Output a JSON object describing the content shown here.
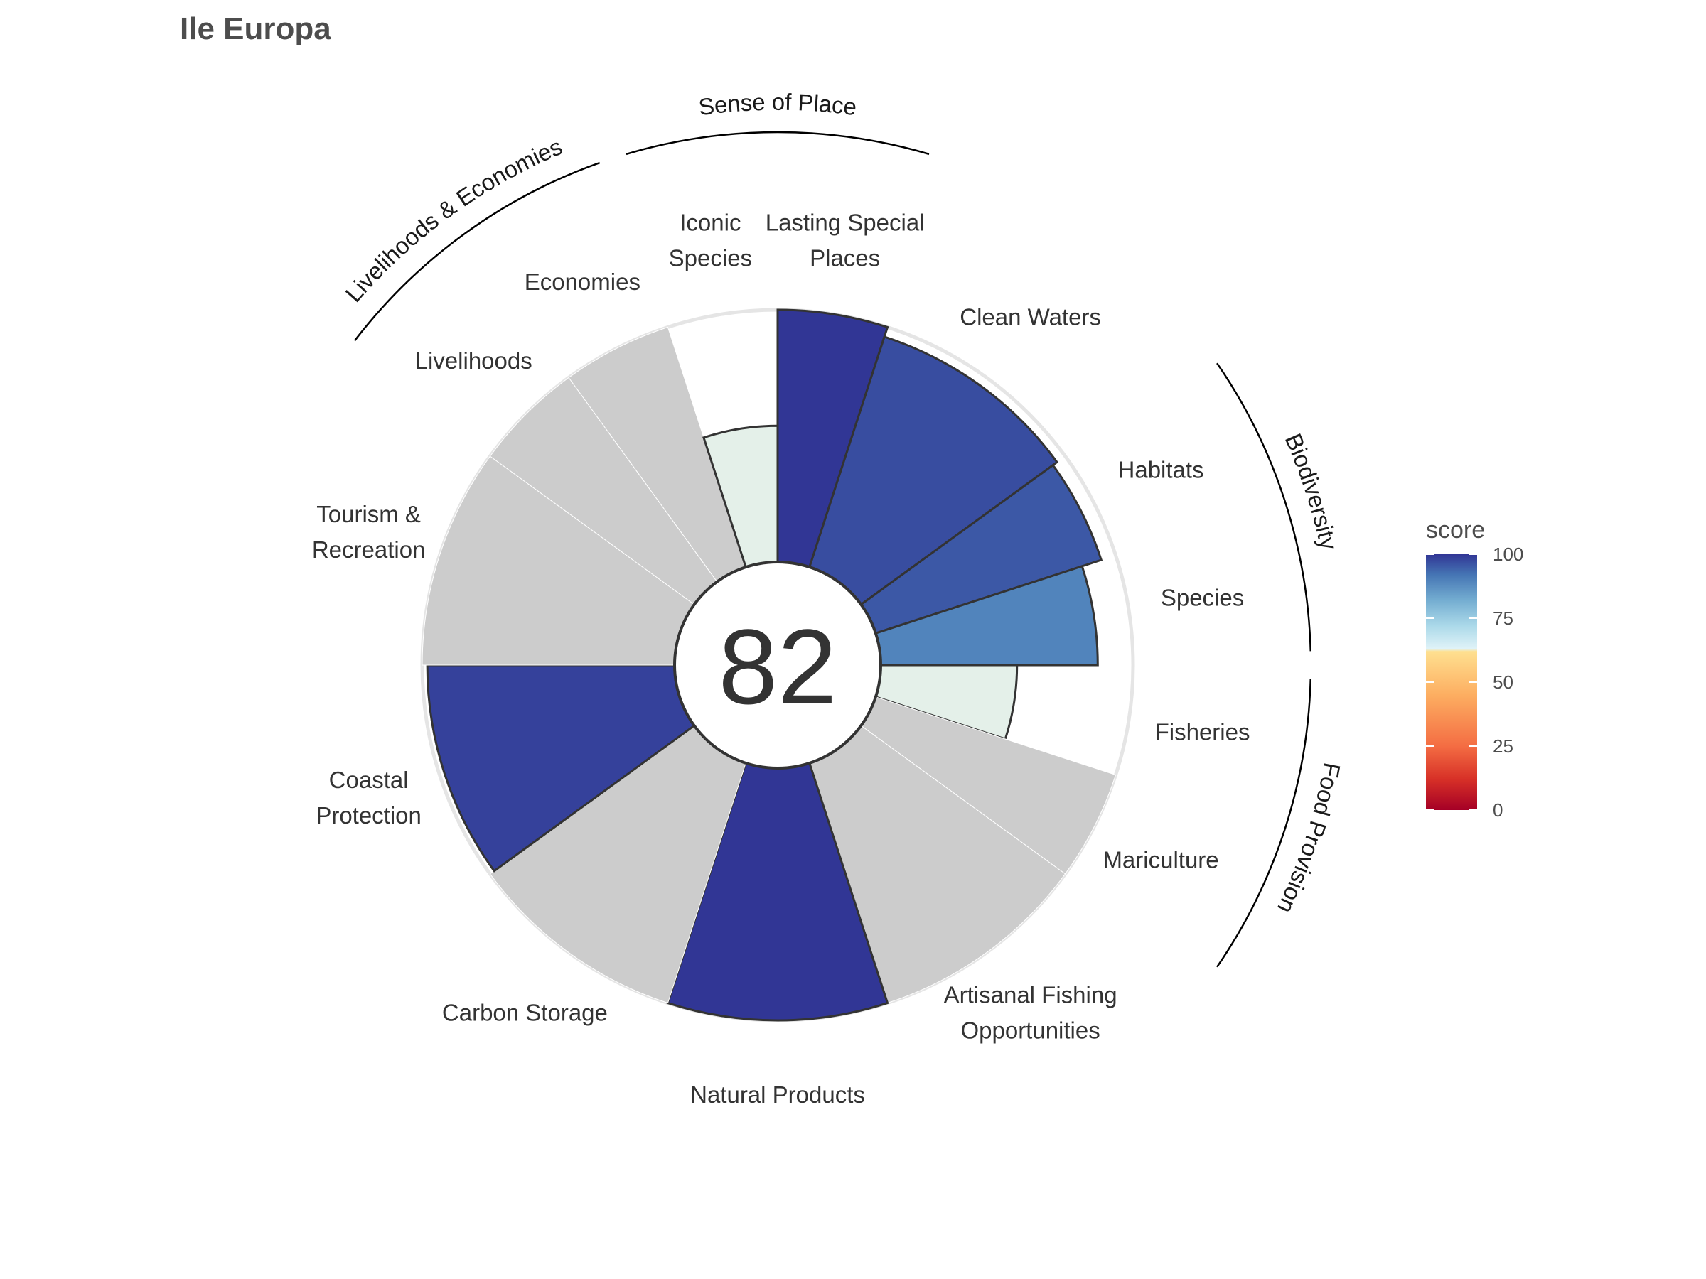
{
  "page_title": "Ile Europa",
  "center_score": "82",
  "chart_data": {
    "type": "bar",
    "coordinate_system": "polar",
    "title": "Ile Europa",
    "range": [
      0,
      100
    ],
    "goals": [
      {
        "label": "Fisheries",
        "value": 54,
        "weight": 1,
        "na": false
      },
      {
        "label": "Mariculture",
        "value": null,
        "weight": 1,
        "na": true
      },
      {
        "label": "Artisanal Fishing Opportunities",
        "label_lines": [
          "Artisanal Fishing",
          "Opportunities"
        ],
        "value": null,
        "weight": 2,
        "na": true
      },
      {
        "label": "Natural Products",
        "value": 100,
        "weight": 2,
        "na": false
      },
      {
        "label": "Carbon Storage",
        "value": null,
        "weight": 2,
        "na": true
      },
      {
        "label": "Coastal Protection",
        "label_lines": [
          "Coastal",
          "Protection"
        ],
        "value": 98,
        "weight": 2,
        "na": false
      },
      {
        "label": "Tourism & Recreation",
        "label_lines": [
          "Tourism &",
          "Recreation"
        ],
        "value": null,
        "weight": 2,
        "na": true
      },
      {
        "label": "Livelihoods",
        "value": null,
        "weight": 1,
        "na": true
      },
      {
        "label": "Economies",
        "value": null,
        "weight": 1,
        "na": true
      },
      {
        "label": "Iconic Species",
        "label_lines": [
          "Iconic",
          "Species"
        ],
        "value": 54,
        "weight": 1,
        "na": false
      },
      {
        "label": "Lasting Special Places",
        "label_lines": [
          "Lasting Special",
          "Places"
        ],
        "value": 100,
        "weight": 1,
        "na": false
      },
      {
        "label": "Clean Waters",
        "value": 96,
        "weight": 2,
        "na": false
      },
      {
        "label": "Habitats",
        "value": 94,
        "weight": 1,
        "na": false
      },
      {
        "label": "Species",
        "value": 86,
        "weight": 1,
        "na": false
      }
    ],
    "groups": [
      {
        "label": "Food Provision",
        "members": [
          "Fisheries",
          "Mariculture"
        ]
      },
      {
        "label": "Biodiversity",
        "members": [
          "Habitats",
          "Species"
        ]
      },
      {
        "label": "Sense of Place",
        "members": [
          "Iconic Species",
          "Lasting Special Places"
        ]
      },
      {
        "label": "Livelihoods & Economies",
        "members": [
          "Livelihoods",
          "Economies"
        ]
      }
    ],
    "legend": {
      "title": "score",
      "ticks": [
        "0",
        "25",
        "50",
        "75",
        "100"
      ],
      "placement": "right"
    },
    "colors": {
      "na_fill": "#cccccc",
      "outline": "#333333",
      "ring": "#e5e5e5",
      "scale": [
        "#a50026",
        "#d73027",
        "#f46d43",
        "#fdae61",
        "#fee090",
        "#e0f3f8",
        "#abd9e9",
        "#74add1",
        "#4575b4",
        "#313695"
      ]
    }
  }
}
